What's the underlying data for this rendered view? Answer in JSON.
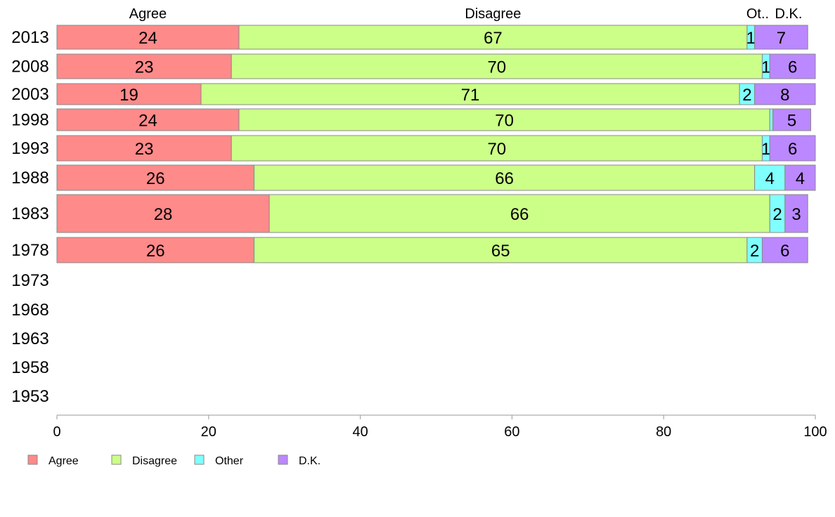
{
  "chart_data": {
    "type": "bar",
    "orientation": "horizontal",
    "stacked": true,
    "categories": [
      "2013",
      "2008",
      "2003",
      "1998",
      "1993",
      "1988",
      "1983",
      "1978",
      "1973",
      "1968",
      "1963",
      "1958",
      "1953"
    ],
    "series": [
      {
        "name": "Agree",
        "color": "#ff8a8a",
        "values": [
          24,
          23,
          19,
          24,
          23,
          26,
          28,
          26,
          null,
          null,
          null,
          null,
          null
        ]
      },
      {
        "name": "Disagree",
        "color": "#ccff88",
        "values": [
          67,
          70,
          71,
          70,
          70,
          66,
          66,
          65,
          null,
          null,
          null,
          null,
          null
        ]
      },
      {
        "name": "Other",
        "color": "#80ffff",
        "values": [
          1,
          1,
          2,
          0.4,
          1,
          4,
          2,
          2,
          null,
          null,
          null,
          null,
          null
        ]
      },
      {
        "name": "D.K.",
        "color": "#bb88ff",
        "values": [
          7,
          6,
          8,
          5,
          6,
          4,
          3,
          6,
          null,
          null,
          null,
          null,
          null
        ]
      }
    ],
    "shown_labels": [
      [
        "24",
        "67",
        "1",
        "7"
      ],
      [
        "23",
        "70",
        "1",
        "6"
      ],
      [
        "19",
        "71",
        "2",
        "8"
      ],
      [
        "24",
        "70",
        "",
        "5"
      ],
      [
        "23",
        "70",
        "1",
        "6"
      ],
      [
        "26",
        "66",
        "4",
        "4"
      ],
      [
        "28",
        "66",
        "2",
        "3"
      ],
      [
        "26",
        "65",
        "2",
        "6"
      ]
    ],
    "column_headers": [
      "Agree",
      "Disagree",
      "Ot..",
      "D.K."
    ],
    "xlim": [
      0,
      100
    ],
    "xticks": [
      "0",
      "20",
      "40",
      "60",
      "80",
      "100"
    ],
    "legend_position": "bottom-left",
    "legend": [
      "Agree",
      "Disagree",
      "Other",
      "D.K."
    ],
    "grid": false,
    "bar_edge_color": "#888888",
    "axis_color": "#999999"
  }
}
